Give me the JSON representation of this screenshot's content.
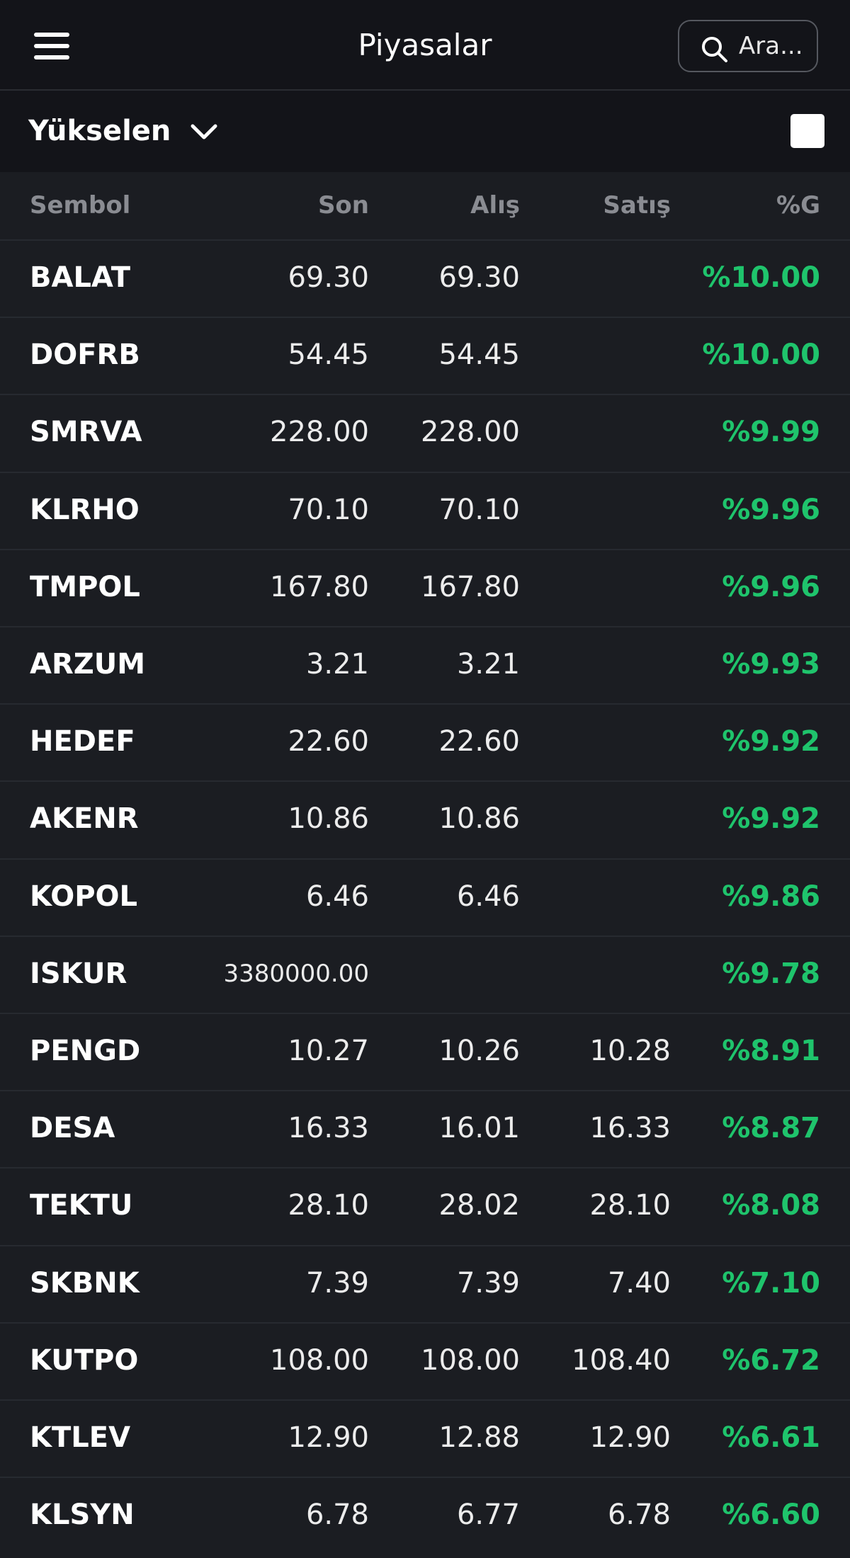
{
  "header": {
    "title": "Piyasalar",
    "search_placeholder": "Ara..."
  },
  "filter": {
    "label": "Yükselen"
  },
  "table": {
    "columns": [
      "Sembol",
      "Son",
      "Alış",
      "Satış",
      "%G"
    ],
    "rows": [
      [
        "BALAT",
        "69.30",
        "69.30",
        null,
        "%10.00"
      ],
      [
        "DOFRB",
        "54.45",
        "54.45",
        null,
        "%10.00"
      ],
      [
        "SMRVA",
        "228.00",
        "228.00",
        null,
        "%9.99"
      ],
      [
        "KLRHO",
        "70.10",
        "70.10",
        null,
        "%9.96"
      ],
      [
        "TMPOL",
        "167.80",
        "167.80",
        null,
        "%9.96"
      ],
      [
        "ARZUM",
        "3.21",
        "3.21",
        null,
        "%9.93"
      ],
      [
        "HEDEF",
        "22.60",
        "22.60",
        null,
        "%9.92"
      ],
      [
        "AKENR",
        "10.86",
        "10.86",
        null,
        "%9.92"
      ],
      [
        "KOPOL",
        "6.46",
        "6.46",
        null,
        "%9.86"
      ],
      [
        "ISKUR",
        "3380000.00",
        null,
        null,
        "%9.78"
      ],
      [
        "PENGD",
        "10.27",
        "10.26",
        "10.28",
        "%8.91"
      ],
      [
        "DESA",
        "16.33",
        "16.01",
        "16.33",
        "%8.87"
      ],
      [
        "TEKTU",
        "28.10",
        "28.02",
        "28.10",
        "%8.08"
      ],
      [
        "SKBNK",
        "7.39",
        "7.39",
        "7.40",
        "%7.10"
      ],
      [
        "KUTPO",
        "108.00",
        "108.00",
        "108.40",
        "%6.72"
      ],
      [
        "KTLEV",
        "12.90",
        "12.88",
        "12.90",
        "%6.61"
      ],
      [
        "KLSYN",
        "6.78",
        "6.77",
        "6.78",
        "%6.60"
      ]
    ]
  }
}
